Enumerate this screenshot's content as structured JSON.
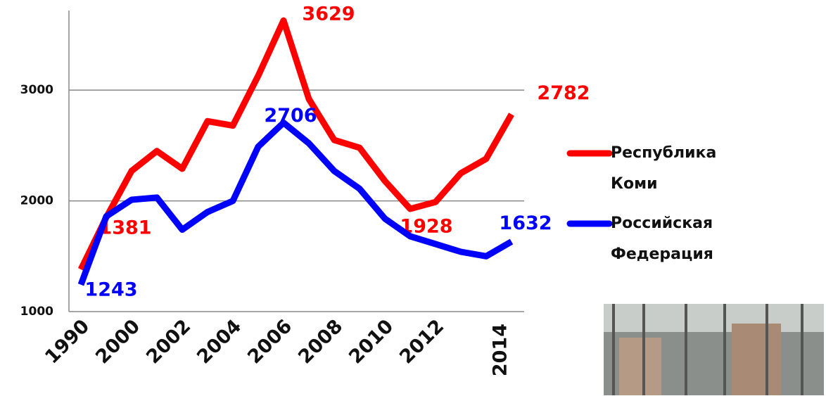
{
  "chart_data": {
    "type": "line",
    "categories": [
      "1990",
      null,
      "2000",
      null,
      "2002",
      null,
      "2004",
      null,
      "2006",
      null,
      "2008",
      null,
      "2010",
      null,
      "2012",
      null,
      null,
      "2014"
    ],
    "series": [
      {
        "name": "Республика Коми",
        "color": "#ff0000",
        "values": [
          1381,
          1850,
          2270,
          2450,
          2290,
          2720,
          2680,
          3130,
          3629,
          2920,
          2550,
          2480,
          2180,
          1928,
          1990,
          2250,
          2380,
          2782
        ],
        "value_labels": [
          "1381",
          null,
          null,
          null,
          null,
          null,
          null,
          null,
          "3629",
          null,
          null,
          null,
          null,
          "1928",
          null,
          null,
          null,
          "2782"
        ]
      },
      {
        "name": "Российская Федерация",
        "color": "#0000ff",
        "values": [
          1243,
          1860,
          2010,
          2030,
          1740,
          1900,
          2000,
          2490,
          2706,
          2520,
          2270,
          2110,
          1840,
          1680,
          1610,
          1540,
          1500,
          1632
        ],
        "value_labels": [
          "1243",
          null,
          null,
          null,
          null,
          null,
          null,
          null,
          "2706",
          null,
          null,
          null,
          null,
          null,
          null,
          null,
          null,
          "1632"
        ]
      }
    ],
    "ylim": [
      1000,
      3700
    ],
    "yticks": [
      1000,
      2000,
      3000
    ],
    "grid": true
  }
}
